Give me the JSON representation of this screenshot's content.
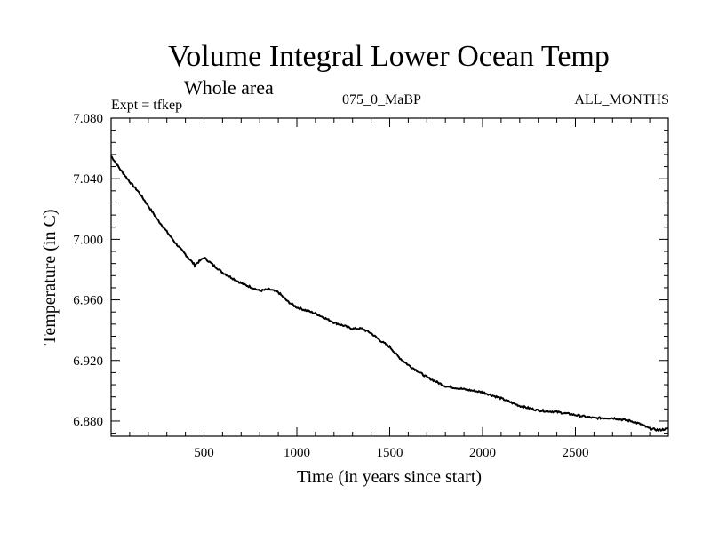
{
  "header": {
    "title": "Volume Integral Lower Ocean Temp",
    "subtitle": "Whole area",
    "experiment": "Expt = tfkep",
    "run_id": "075_0_MaBP",
    "months": "ALL_MONTHS"
  },
  "chart_data": {
    "type": "line",
    "title": "Volume Integral Lower Ocean Temp",
    "subtitle": "Whole area",
    "xlabel": "Time (in years since start)",
    "ylabel": "Temperature (in C)",
    "xlim": [
      0,
      3000
    ],
    "ylim": [
      6.87,
      7.08
    ],
    "grid": false,
    "x_ticks": [
      500,
      1000,
      1500,
      2000,
      2500
    ],
    "x_tick_labels": [
      "500",
      "1000",
      "1500",
      "2000",
      "2500"
    ],
    "y_ticks": [
      6.88,
      6.92,
      6.96,
      7.0,
      7.04,
      7.08
    ],
    "y_tick_labels": [
      "6.880",
      "6.920",
      "6.960",
      "7.000",
      "7.040",
      "7.080"
    ],
    "series": [
      {
        "color": "#000000",
        "x": [
          0,
          50,
          100,
          150,
          200,
          250,
          300,
          350,
          400,
          450,
          500,
          600,
          700,
          800,
          850,
          900,
          950,
          1000,
          1100,
          1200,
          1300,
          1350,
          1400,
          1450,
          1500,
          1550,
          1600,
          1700,
          1800,
          1900,
          2000,
          2100,
          2200,
          2300,
          2400,
          2500,
          2600,
          2700,
          2800,
          2850,
          2900,
          2950,
          3000
        ],
        "y": [
          7.055,
          7.046,
          7.038,
          7.031,
          7.022,
          7.013,
          7.005,
          6.997,
          6.99,
          6.983,
          6.988,
          6.978,
          6.971,
          6.966,
          6.967,
          6.965,
          6.959,
          6.955,
          6.951,
          6.945,
          6.941,
          6.941,
          6.938,
          6.933,
          6.929,
          6.922,
          6.917,
          6.909,
          6.903,
          6.901,
          6.899,
          6.895,
          6.89,
          6.887,
          6.886,
          6.884,
          6.882,
          6.882,
          6.88,
          6.878,
          6.875,
          6.874,
          6.875
        ]
      }
    ]
  }
}
